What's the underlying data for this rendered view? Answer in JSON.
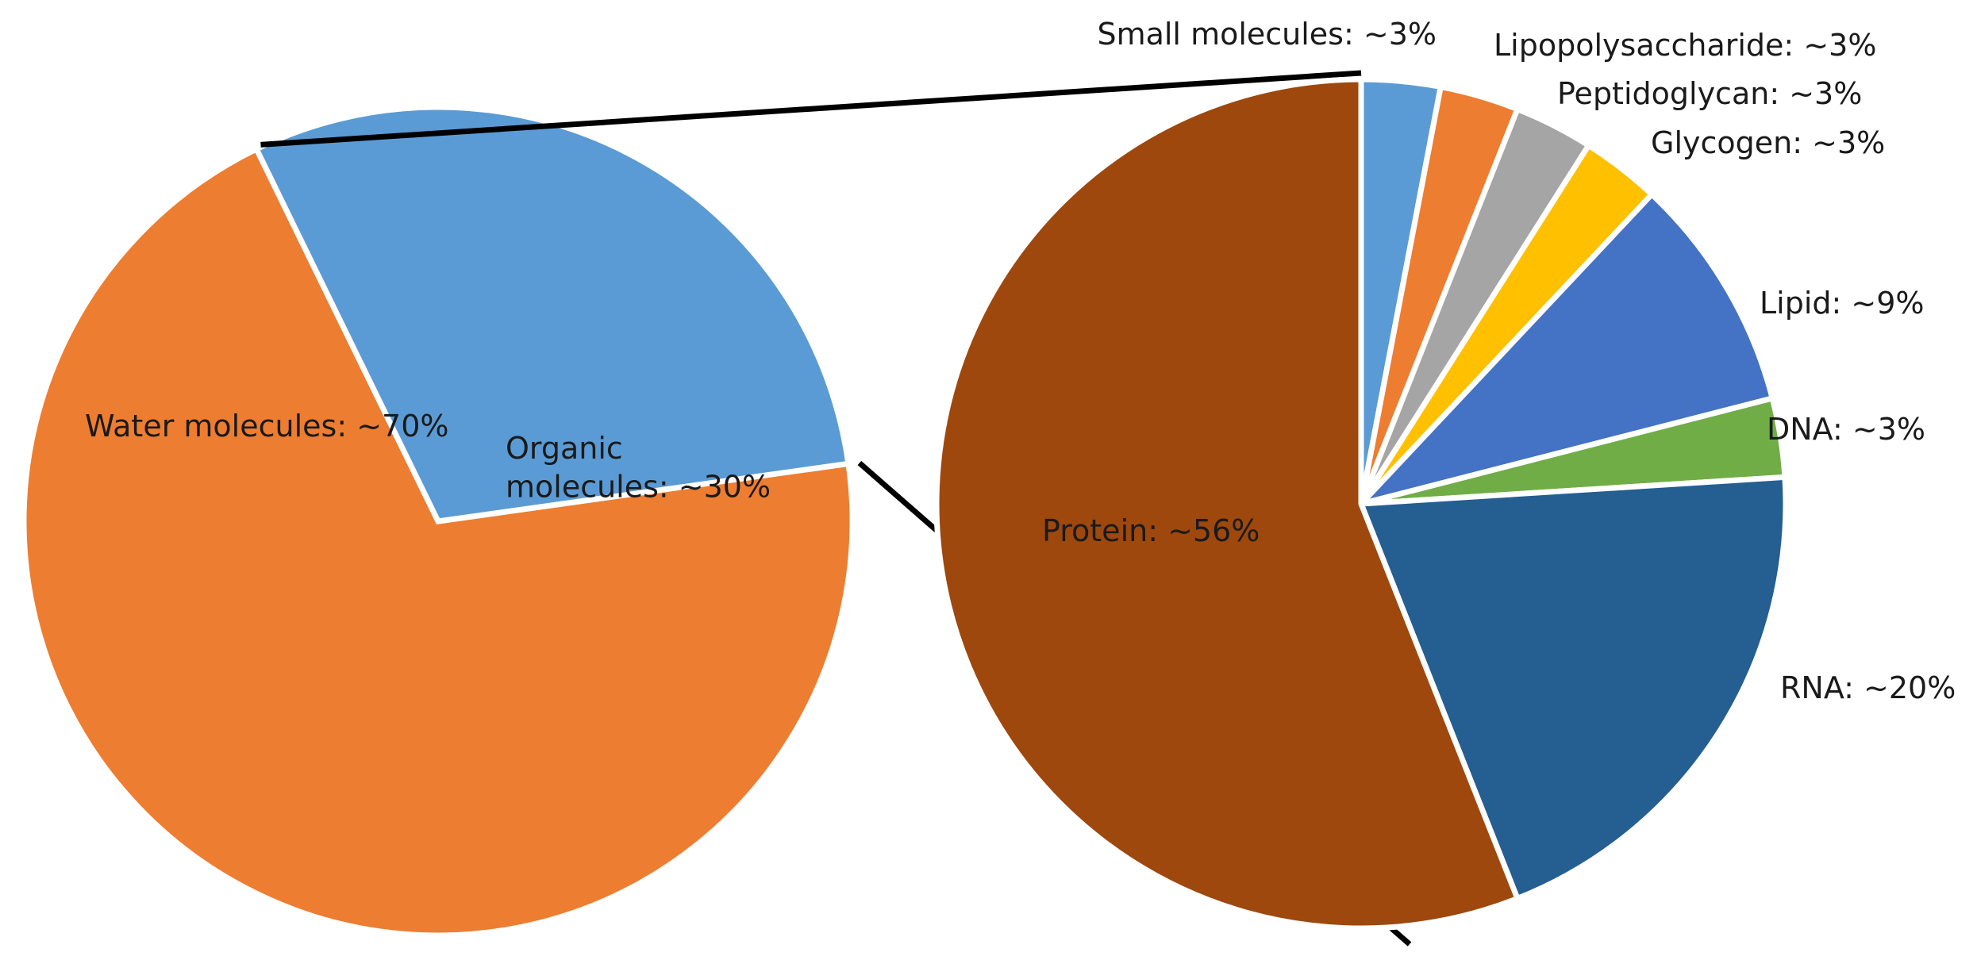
{
  "chart_data": [
    {
      "type": "pie",
      "title": "",
      "slices": [
        {
          "label": "Water molecules: ~70%",
          "category": "Water molecules",
          "value": 70,
          "color": "#ED7D31"
        },
        {
          "label_lines": [
            "Organic",
            "molecules: ~30%"
          ],
          "category": "Organic molecules",
          "value": 30,
          "color": "#5B9BD5"
        }
      ]
    },
    {
      "type": "pie",
      "title": "",
      "breakdown_of": "Organic molecules",
      "slices": [
        {
          "label": "Small molecules: ~3%",
          "category": "Small molecules",
          "value": 3,
          "color": "#5B9BD5"
        },
        {
          "label": "Lipopolysaccharide: ~3%",
          "category": "Lipopolysaccharide",
          "value": 3,
          "color": "#ED7D31"
        },
        {
          "label": "Peptidoglycan: ~3%",
          "category": "Peptidoglycan",
          "value": 3,
          "color": "#A5A5A5"
        },
        {
          "label": "Glycogen: ~3%",
          "category": "Glycogen",
          "value": 3,
          "color": "#FFC000"
        },
        {
          "label": "Lipid: ~9%",
          "category": "Lipid",
          "value": 9,
          "color": "#4472C4"
        },
        {
          "label": "DNA: ~3%",
          "category": "DNA",
          "value": 3,
          "color": "#70AD47"
        },
        {
          "label": "RNA: ~20%",
          "category": "RNA",
          "value": 20,
          "color": "#255E91"
        },
        {
          "label": "Protein: ~56%",
          "category": "Protein",
          "value": 56,
          "color": "#9E480E"
        }
      ]
    }
  ]
}
